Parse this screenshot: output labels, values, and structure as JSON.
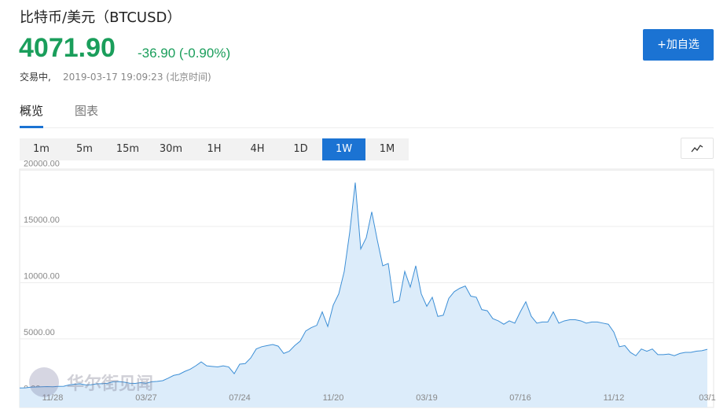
{
  "header": {
    "title": "比特币/美元（BTCUSD）",
    "price": "4071.90",
    "change": "-36.90 (-0.90%)",
    "status": "交易中,",
    "time": "2019-03-17 19:09:23 (北京时间)",
    "button": "+加自选"
  },
  "tabs": [
    "概览",
    "图表"
  ],
  "periods": [
    "1m",
    "5m",
    "15m",
    "30m",
    "1H",
    "4H",
    "1D",
    "1W",
    "1M"
  ],
  "watermark": "华尔街见闻",
  "chart_data": {
    "type": "area",
    "color": "#3d8fd6",
    "fill": "#dcecfa",
    "grid": true,
    "ylim": [
      -1100,
      20100
    ],
    "yticks": [
      {
        "value": 0,
        "label": "0.00"
      },
      {
        "value": 5000,
        "label": "5000.00"
      },
      {
        "value": 10000,
        "label": "10000.00"
      },
      {
        "value": 15000,
        "label": "15000.00"
      },
      {
        "value": 20000,
        "label": "20000.00"
      }
    ],
    "categories": [
      null,
      null,
      null,
      null,
      null,
      null,
      "11/28",
      null,
      null,
      null,
      null,
      null,
      null,
      null,
      null,
      null,
      null,
      null,
      null,
      null,
      null,
      null,
      null,
      "03/27",
      null,
      null,
      null,
      null,
      null,
      null,
      null,
      null,
      null,
      null,
      null,
      null,
      null,
      null,
      null,
      null,
      "07/24",
      null,
      null,
      null,
      null,
      null,
      null,
      null,
      null,
      null,
      null,
      null,
      null,
      null,
      null,
      null,
      null,
      "11/20",
      null,
      null,
      null,
      null,
      null,
      null,
      null,
      null,
      null,
      null,
      null,
      null,
      null,
      null,
      null,
      null,
      "03/19",
      null,
      null,
      null,
      null,
      null,
      null,
      null,
      null,
      null,
      null,
      null,
      null,
      null,
      null,
      null,
      null,
      "07/16",
      null,
      null,
      null,
      null,
      null,
      null,
      null,
      null,
      null,
      null,
      null,
      null,
      null,
      null,
      null,
      null,
      "11/12",
      null,
      null,
      null,
      null,
      null,
      null,
      null,
      null,
      null,
      null,
      null,
      null,
      null,
      null,
      null,
      null,
      "03/1"
    ],
    "values": [
      630,
      640,
      700,
      720,
      740,
      750,
      740,
      770,
      780,
      900,
      960,
      1000,
      900,
      920,
      1000,
      1010,
      1050,
      1180,
      1200,
      1150,
      1050,
      1030,
      1100,
      1050,
      1180,
      1220,
      1280,
      1500,
      1750,
      1850,
      2100,
      2300,
      2600,
      2950,
      2600,
      2550,
      2500,
      2600,
      2500,
      1900,
      2750,
      2800,
      3300,
      4100,
      4300,
      4400,
      4500,
      4350,
      3700,
      3900,
      4400,
      4800,
      5700,
      6000,
      6200,
      7400,
      6100,
      8000,
      9000,
      11000,
      14500,
      18900,
      13000,
      14000,
      16300,
      13800,
      11500,
      11700,
      8200,
      8400,
      11000,
      9600,
      11500,
      9000,
      7900,
      8700,
      7000,
      7100,
      8600,
      9200,
      9500,
      9700,
      8800,
      8700,
      7600,
      7500,
      6800,
      6600,
      6300,
      6600,
      6400,
      7400,
      8300,
      7000,
      6400,
      6500,
      6500,
      7400,
      6400,
      6600,
      6700,
      6700,
      6600,
      6400,
      6500,
      6500,
      6400,
      6300,
      5600,
      4300,
      4400,
      3800,
      3500,
      4100,
      3900,
      4100,
      3600,
      3600,
      3650,
      3500,
      3700,
      3800,
      3800,
      3900,
      3950,
      4071.9
    ]
  }
}
